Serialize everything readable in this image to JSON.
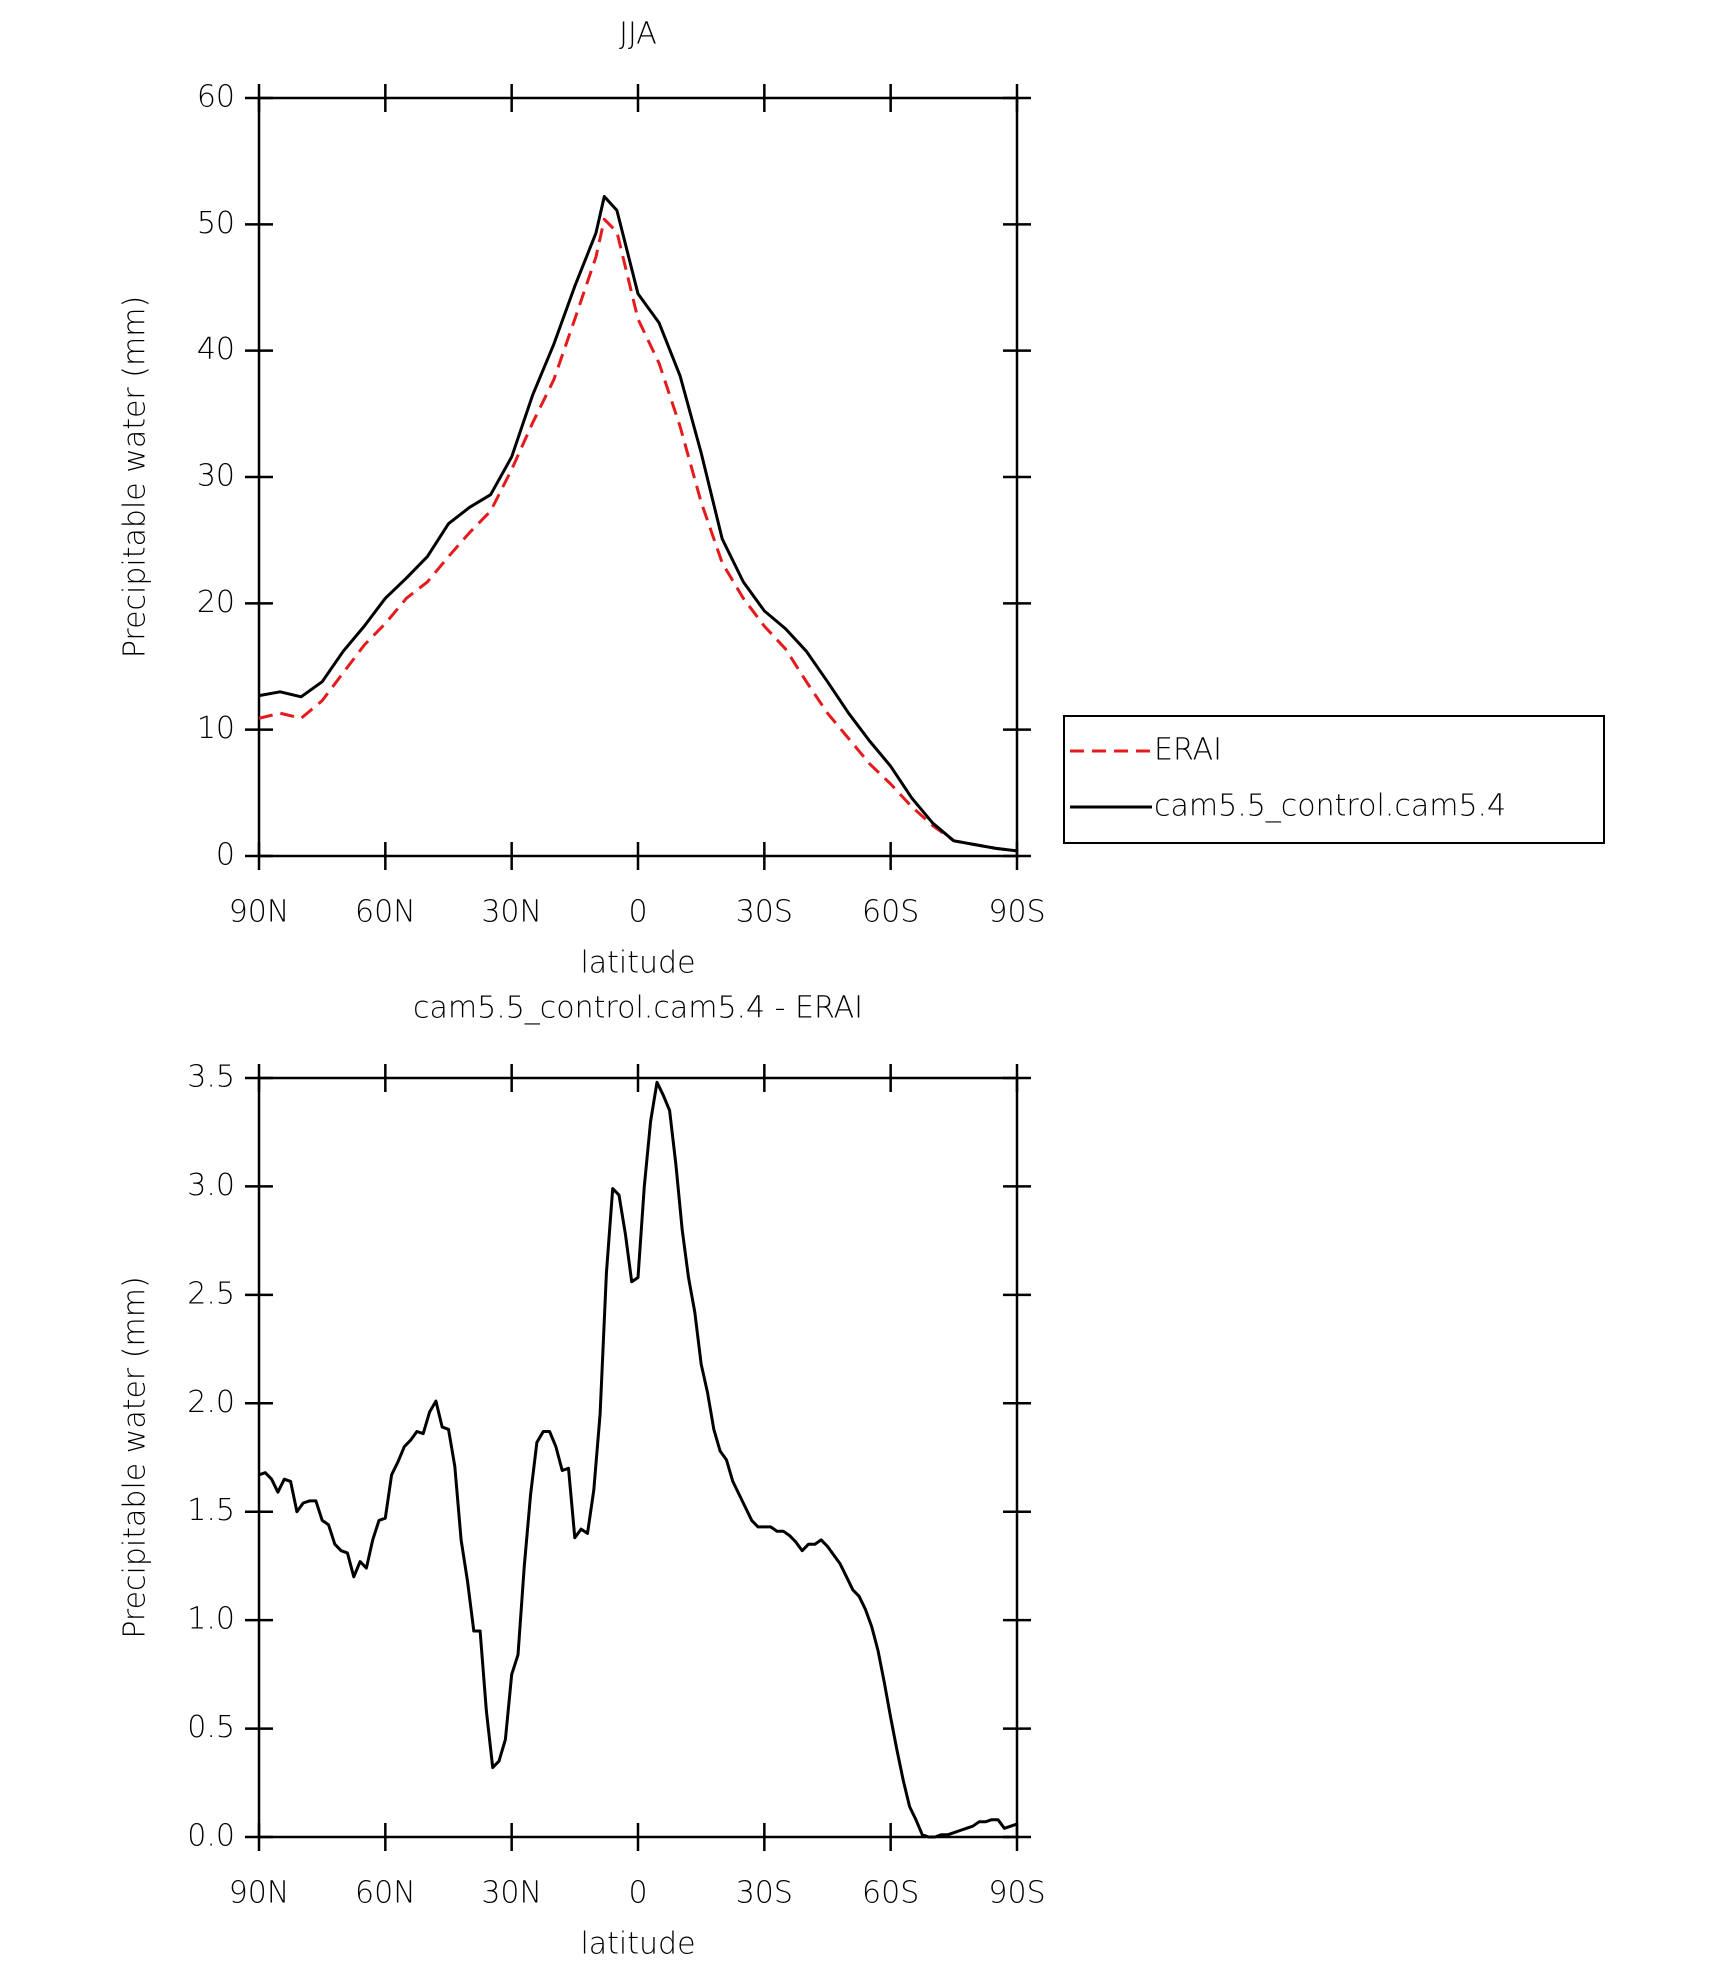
{
  "chart_data": [
    {
      "type": "line",
      "title": "JJA",
      "xlabel": "latitude",
      "ylabel": "Precipitable water (mm)",
      "x": [
        90,
        85,
        80,
        75,
        70,
        65,
        60,
        55,
        50,
        45,
        40,
        35,
        30,
        25,
        20,
        15,
        10,
        8,
        5,
        0,
        -5,
        -10,
        -15,
        -20,
        -25,
        -30,
        -35,
        -40,
        -45,
        -50,
        -55,
        -60,
        -65,
        -70,
        -75,
        -80,
        -85,
        -90
      ],
      "series": [
        {
          "name": "ERAI",
          "color": "#e41a1c",
          "dashed": true,
          "values": [
            10.9,
            11.3,
            10.9,
            12.3,
            14.5,
            16.7,
            18.4,
            20.4,
            21.7,
            23.7,
            25.6,
            27.3,
            30.6,
            34.3,
            37.7,
            42.5,
            47.4,
            50.4,
            49.4,
            42.5,
            39,
            34,
            28,
            23.2,
            20.4,
            18.2,
            16.4,
            13.8,
            11.3,
            9.3,
            7.3,
            5.7,
            3.9,
            2.4,
            1.2,
            0.9,
            0.6,
            0.4
          ]
        },
        {
          "name": "cam5.5_control.cam5.4",
          "color": "#000000",
          "dashed": false,
          "values": [
            12.7,
            13,
            12.6,
            13.8,
            16.2,
            18.2,
            20.4,
            22,
            23.7,
            26.3,
            27.6,
            28.6,
            31.6,
            36.5,
            40.5,
            45.1,
            49.3,
            52.2,
            51.1,
            44.5,
            42.2,
            38,
            31.9,
            25.1,
            21.7,
            19.4,
            18,
            16.2,
            13.8,
            11.3,
            9.1,
            7.1,
            4.6,
            2.6,
            1.2,
            0.9,
            0.6,
            0.4
          ]
        }
      ],
      "xlim": [
        90,
        -90
      ],
      "xticks": [
        {
          "value": 90,
          "label": "90N"
        },
        {
          "value": 60,
          "label": "60N"
        },
        {
          "value": 30,
          "label": "30N"
        },
        0,
        {
          "value": -30,
          "label": "30S"
        },
        {
          "value": -60,
          "label": "60S"
        },
        {
          "value": -90,
          "label": "90S"
        }
      ],
      "ylim": [
        0,
        60
      ],
      "yticks": [
        0,
        10,
        20,
        30,
        40,
        50,
        60
      ],
      "legend": "right"
    },
    {
      "type": "line",
      "title": "cam5.5_control.cam5.4 - ERAI",
      "xlabel": "latitude",
      "ylabel": "Precipitable water (mm)",
      "x": [
        90,
        88.5,
        87,
        85.5,
        84,
        82.5,
        81,
        79.5,
        78,
        76.5,
        75,
        73.5,
        72,
        70.5,
        69,
        67.5,
        66,
        64.5,
        63,
        61.5,
        60,
        58.5,
        57,
        55.5,
        54,
        52.5,
        51,
        49.5,
        48,
        46.5,
        45,
        43.5,
        42,
        40.5,
        39,
        37.5,
        36,
        34.5,
        33,
        31.5,
        30,
        28.5,
        27,
        25.5,
        24,
        22.5,
        21,
        19.5,
        18,
        16.5,
        15,
        13.5,
        12,
        10.5,
        9,
        7.5,
        6,
        4.5,
        3,
        1.5,
        0,
        -1.5,
        -3,
        -4.5,
        -6,
        -7.5,
        -9,
        -10.5,
        -12,
        -13.5,
        -15,
        -16.5,
        -18,
        -19.5,
        -21,
        -22.5,
        -24,
        -25.5,
        -27,
        -28.5,
        -30,
        -31.5,
        -33,
        -34.5,
        -36,
        -37.5,
        -39,
        -40.5,
        -42,
        -43.5,
        -45,
        -46.5,
        -48,
        -49.5,
        -51,
        -52.5,
        -54,
        -55.5,
        -57,
        -58.5,
        -60,
        -61.5,
        -63,
        -64.5,
        -66,
        -67.5,
        -69,
        -70.5,
        -72,
        -73.5,
        -75,
        -76.5,
        -78,
        -79.5,
        -81,
        -82.5,
        -84,
        -85.5,
        -87,
        -88.5,
        -90
      ],
      "series": [
        {
          "color": "#000000",
          "values": [
            1.67,
            1.68,
            1.65,
            1.59,
            1.65,
            1.64,
            1.5,
            1.54,
            1.55,
            1.55,
            1.46,
            1.44,
            1.35,
            1.32,
            1.31,
            1.2,
            1.27,
            1.24,
            1.37,
            1.46,
            1.47,
            1.67,
            1.73,
            1.8,
            1.83,
            1.87,
            1.86,
            1.96,
            2.01,
            1.89,
            1.88,
            1.71,
            1.37,
            1.18,
            0.95,
            0.95,
            0.58,
            0.32,
            0.35,
            0.45,
            0.75,
            0.84,
            1.25,
            1.58,
            1.82,
            1.87,
            1.87,
            1.8,
            1.69,
            1.7,
            1.38,
            1.42,
            1.4,
            1.6,
            1.95,
            2.6,
            2.99,
            2.96,
            2.78,
            2.56,
            2.58,
            3.0,
            3.3,
            3.48,
            3.42,
            3.35,
            3.1,
            2.8,
            2.58,
            2.42,
            2.18,
            2.05,
            1.88,
            1.78,
            1.74,
            1.64,
            1.58,
            1.52,
            1.46,
            1.43,
            1.43,
            1.43,
            1.41,
            1.41,
            1.39,
            1.36,
            1.32,
            1.35,
            1.35,
            1.37,
            1.34,
            1.3,
            1.26,
            1.2,
            1.14,
            1.11,
            1.05,
            0.97,
            0.86,
            0.71,
            0.55,
            0.4,
            0.26,
            0.14,
            0.08,
            0.01,
            0.0,
            0.0,
            0.01,
            0.01,
            0.02,
            0.03,
            0.04,
            0.05,
            0.07,
            0.07,
            0.08,
            0.08,
            0.04,
            0.05,
            0.06
          ]
        }
      ],
      "xlim": [
        90,
        -90
      ],
      "xticks": [
        {
          "value": 90,
          "label": "90N"
        },
        {
          "value": 60,
          "label": "60N"
        },
        {
          "value": 30,
          "label": "30N"
        },
        0,
        {
          "value": -30,
          "label": "30S"
        },
        {
          "value": -60,
          "label": "60S"
        },
        {
          "value": -90,
          "label": "90S"
        }
      ],
      "ylim": [
        0,
        3.5
      ],
      "yticks": [
        {
          "value": 0,
          "label": "0.0"
        },
        0.5,
        {
          "value": 1,
          "label": "1.0"
        },
        1.5,
        {
          "value": 2,
          "label": "2.0"
        },
        2.5,
        {
          "value": 3,
          "label": "3.0"
        },
        3.5
      ]
    }
  ]
}
